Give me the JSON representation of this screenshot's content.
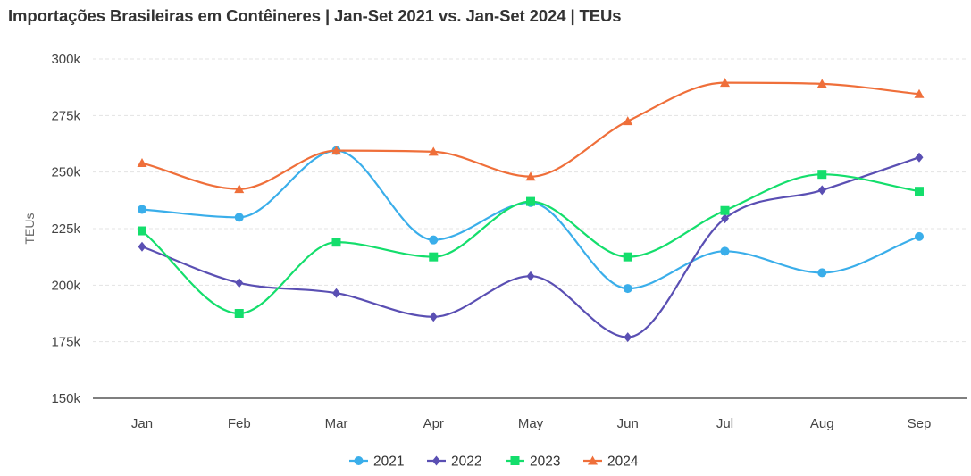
{
  "chart_data": {
    "type": "line",
    "title": "Importações Brasileiras em Contêineres | Jan-Set 2021 vs. Jan-Set 2024 | TEUs",
    "xlabel": "",
    "ylabel": "TEUs",
    "ylim": [
      150000,
      300000
    ],
    "yticks": [
      150000,
      175000,
      200000,
      225000,
      250000,
      275000,
      300000
    ],
    "ytick_labels": [
      "150k",
      "175k",
      "200k",
      "225k",
      "250k",
      "275k",
      "300k"
    ],
    "categories": [
      "Jan",
      "Feb",
      "Mar",
      "Apr",
      "May",
      "Jun",
      "Jul",
      "Aug",
      "Sep"
    ],
    "grid": true,
    "legend_position": "bottom-center",
    "series": [
      {
        "name": "2021",
        "color": "#3aaeea",
        "marker": "circle",
        "values": [
          233500,
          230000,
          259500,
          220000,
          236500,
          198500,
          215000,
          205500,
          221500
        ]
      },
      {
        "name": "2022",
        "color": "#5a4fb3",
        "marker": "diamond",
        "values": [
          217000,
          201000,
          196500,
          186000,
          204000,
          177000,
          229500,
          242000,
          256500
        ]
      },
      {
        "name": "2023",
        "color": "#14de6c",
        "marker": "square",
        "values": [
          224000,
          187500,
          219000,
          212500,
          237000,
          212500,
          233000,
          249000,
          241500
        ]
      },
      {
        "name": "2024",
        "color": "#ef6f3a",
        "marker": "triangle",
        "values": [
          254000,
          242500,
          259500,
          259000,
          248000,
          272500,
          289500,
          289000,
          284500
        ]
      }
    ]
  }
}
